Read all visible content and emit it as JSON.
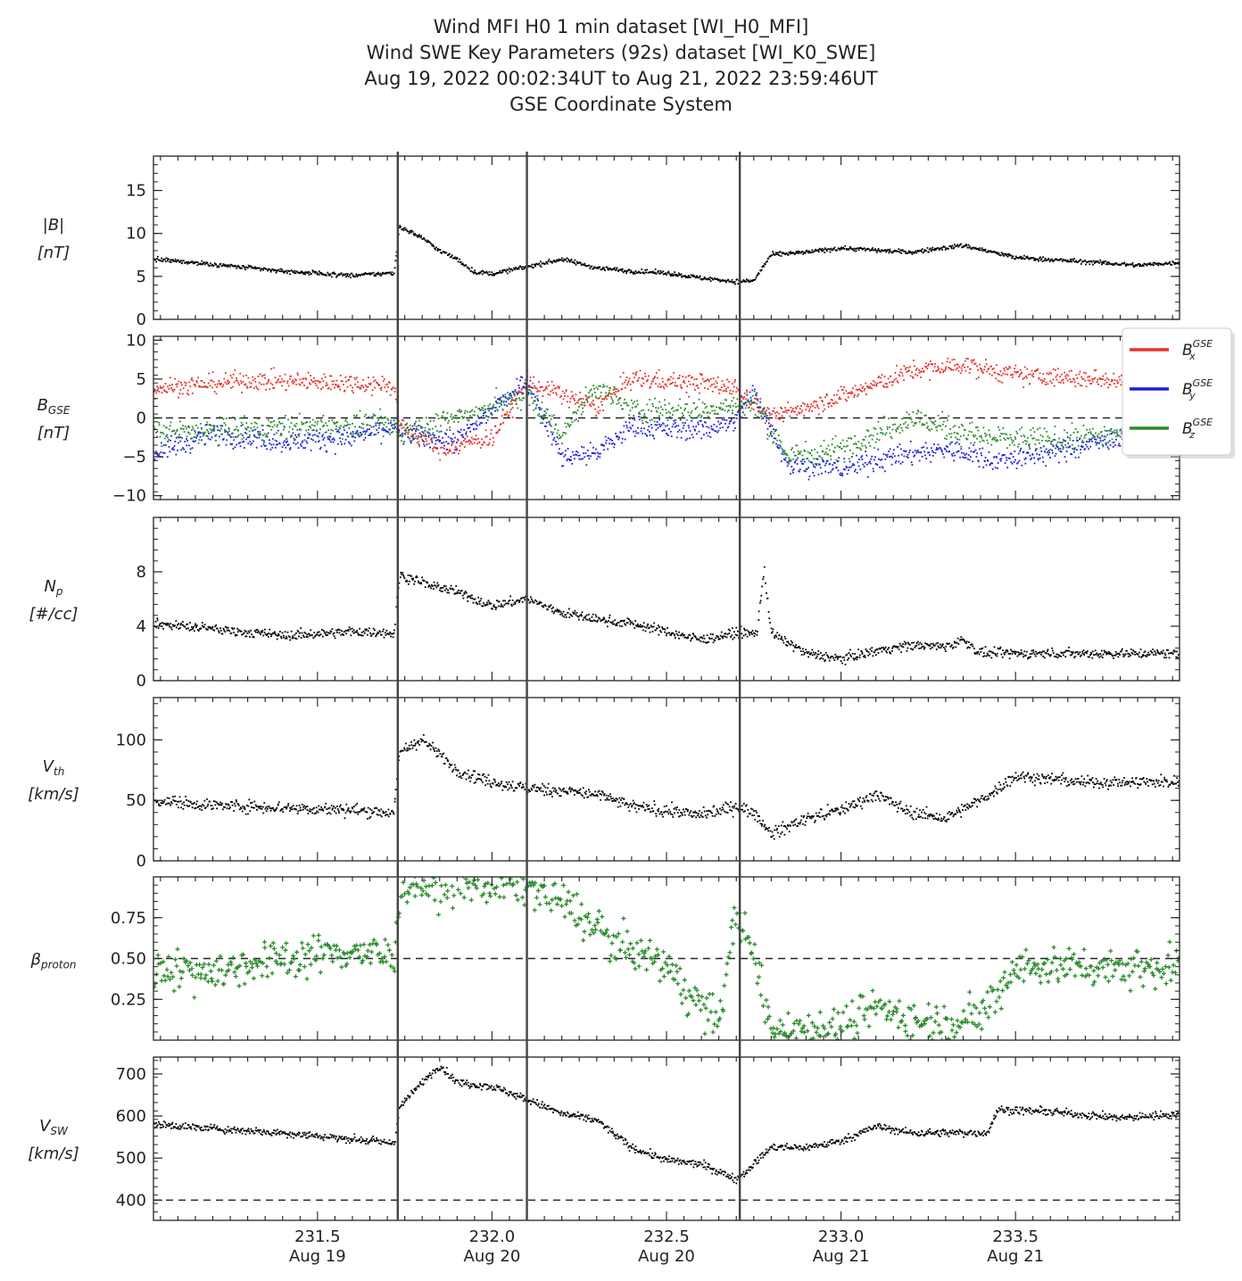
{
  "title_lines": [
    "Wind MFI H0 1 min dataset [WI_H0_MFI]",
    "Wind SWE Key Parameters (92s) dataset [WI_K0_SWE]",
    "Aug 19, 2022 00:02:34UT to Aug 21, 2022 23:59:46UT",
    "GSE Coordinate System"
  ],
  "chart_data": {
    "type": "scatter",
    "x_range": [
      231.03,
      233.97
    ],
    "x_ticks": [
      {
        "value": 231.5,
        "label": "231.5",
        "date": "Aug 19"
      },
      {
        "value": 232.0,
        "label": "232.0",
        "date": "Aug 20"
      },
      {
        "value": 232.5,
        "label": "232.5",
        "date": "Aug 20"
      },
      {
        "value": 233.0,
        "label": "233.0",
        "date": "Aug 21"
      },
      {
        "value": 233.5,
        "label": "233.5",
        "date": "Aug 21"
      }
    ],
    "event_lines": [
      231.73,
      232.1,
      232.71
    ],
    "panels": [
      {
        "id": "B",
        "ylabel_lines": [
          {
            "main": "|B|",
            "sub": "",
            "sup": ""
          },
          {
            "main": "[nT]",
            "sub": "",
            "sup": ""
          }
        ],
        "ylim": [
          0,
          19
        ],
        "yticks": [
          0,
          5,
          10,
          15
        ],
        "ytick_labels": [
          "0",
          "5",
          "10",
          "15"
        ],
        "hline": null,
        "series": [
          {
            "name": "|B|",
            "color": "#000000",
            "marker": "dot",
            "noise": 0.25,
            "x": [
              231.03,
              231.2,
              231.4,
              231.6,
              231.72,
              231.735,
              231.8,
              231.85,
              231.9,
              231.95,
              232.0,
              232.1,
              232.2,
              232.3,
              232.4,
              232.5,
              232.6,
              232.7,
              232.75,
              232.8,
              232.9,
              233.0,
              233.2,
              233.35,
              233.5,
              233.7,
              233.85,
              233.97
            ],
            "y": [
              7.0,
              6.4,
              5.6,
              5.1,
              5.4,
              10.8,
              9.5,
              8.0,
              7.0,
              5.5,
              5.3,
              6.1,
              7.0,
              6.0,
              5.6,
              5.4,
              4.8,
              4.4,
              4.5,
              7.5,
              7.8,
              8.3,
              7.8,
              8.6,
              7.2,
              6.7,
              6.3,
              6.6
            ]
          }
        ]
      },
      {
        "id": "BGSE",
        "ylabel_lines": [
          {
            "main": "B",
            "sub": "GSE",
            "sup": ""
          },
          {
            "main": "[nT]",
            "sub": "",
            "sup": ""
          }
        ],
        "ylim": [
          -10.5,
          10.5
        ],
        "yticks": [
          -10,
          -5,
          0,
          5,
          10
        ],
        "ytick_labels": [
          "−10",
          "−5",
          "0",
          "5",
          "10"
        ],
        "hline": 0,
        "series": [
          {
            "name": "Bx",
            "label_sup": "GSE",
            "label_sub": "x",
            "color": "#e8302a",
            "marker": "dot",
            "noise": 1.2,
            "x": [
              231.03,
              231.3,
              231.6,
              231.72,
              231.735,
              231.85,
              232.0,
              232.1,
              232.2,
              232.3,
              232.4,
              232.6,
              232.7,
              232.8,
              232.9,
              233.05,
              233.2,
              233.35,
              233.5,
              233.7,
              233.97
            ],
            "y": [
              3.8,
              4.8,
              4.5,
              4.2,
              -1.0,
              -4.0,
              -2.5,
              4.5,
              3.0,
              1.5,
              5.0,
              4.5,
              3.8,
              0.0,
              1.5,
              3.5,
              6.0,
              6.8,
              5.5,
              5.0,
              5.0
            ]
          },
          {
            "name": "By",
            "label_sup": "GSE",
            "label_sub": "y",
            "color": "#1f1fe0",
            "marker": "dot",
            "noise": 1.4,
            "x": [
              231.03,
              231.2,
              231.4,
              231.6,
              231.72,
              231.735,
              231.9,
              232.1,
              232.2,
              232.3,
              232.4,
              232.6,
              232.7,
              232.75,
              232.85,
              233.0,
              233.15,
              233.3,
              233.45,
              233.6,
              233.8,
              233.97
            ],
            "y": [
              -4.5,
              -2.0,
              -3.0,
              -2.5,
              -1.0,
              -2.0,
              -3.0,
              5.0,
              -5.0,
              -4.5,
              -1.2,
              -1.5,
              -0.5,
              3.5,
              -6.0,
              -6.5,
              -5.0,
              -4.0,
              -5.5,
              -4.5,
              -2.5,
              -0.5
            ]
          },
          {
            "name": "Bz",
            "label_sup": "GSE",
            "label_sub": "z",
            "color": "#2a8a2a",
            "marker": "dot",
            "noise": 1.6,
            "x": [
              231.03,
              231.3,
              231.6,
              231.72,
              231.735,
              231.9,
              232.1,
              232.2,
              232.3,
              232.4,
              232.6,
              232.7,
              232.75,
              232.85,
              233.0,
              233.2,
              233.4,
              233.6,
              233.8,
              233.97
            ],
            "y": [
              -2.0,
              -1.5,
              -1.0,
              -1.0,
              -2.0,
              0.0,
              3.0,
              -2.0,
              4.0,
              1.0,
              1.0,
              1.5,
              2.0,
              -5.0,
              -4.0,
              0.0,
              -2.5,
              -3.0,
              -2.0,
              -3.0
            ]
          }
        ]
      },
      {
        "id": "Np",
        "ylabel_lines": [
          {
            "main": "N",
            "sub": "p",
            "sup": ""
          },
          {
            "main": "[#/cc]",
            "sub": "",
            "sup": ""
          }
        ],
        "ylim": [
          0,
          12
        ],
        "yticks": [
          0,
          4,
          8
        ],
        "ytick_labels": [
          "0",
          "4",
          "8"
        ],
        "hline": null,
        "series": [
          {
            "name": "Np",
            "color": "#000000",
            "marker": "dot",
            "noise": 0.35,
            "x": [
              231.03,
              231.2,
              231.4,
              231.6,
              231.72,
              231.735,
              231.8,
              231.9,
              232.0,
              232.1,
              232.2,
              232.3,
              232.4,
              232.5,
              232.6,
              232.7,
              232.76,
              232.78,
              232.8,
              232.9,
              233.0,
              233.1,
              233.2,
              233.3,
              233.35,
              233.4,
              233.6,
              233.8,
              233.97
            ],
            "y": [
              4.2,
              3.8,
              3.3,
              3.6,
              3.5,
              7.8,
              7.2,
              6.5,
              5.5,
              6.0,
              5.0,
              4.5,
              4.2,
              3.6,
              3.0,
              3.5,
              3.5,
              8.3,
              3.5,
              2.0,
              1.6,
              2.2,
              2.6,
              2.5,
              3.0,
              2.0,
              2.0,
              2.0,
              2.0
            ]
          }
        ]
      },
      {
        "id": "Vth",
        "ylabel_lines": [
          {
            "main": "V",
            "sub": "th",
            "sup": ""
          },
          {
            "main": "[km/s]",
            "sub": "",
            "sup": ""
          }
        ],
        "ylim": [
          0,
          135
        ],
        "yticks": [
          0,
          50,
          100
        ],
        "ytick_labels": [
          "0",
          "50",
          "100"
        ],
        "hline": null,
        "series": [
          {
            "name": "Vth",
            "color": "#000000",
            "marker": "dot",
            "noise": 5,
            "x": [
              231.03,
              231.2,
              231.4,
              231.6,
              231.72,
              231.735,
              231.8,
              231.9,
              232.0,
              232.1,
              232.2,
              232.3,
              232.4,
              232.6,
              232.7,
              232.75,
              232.8,
              232.9,
              233.0,
              233.1,
              233.2,
              233.3,
              233.4,
              233.5,
              233.7,
              233.97
            ],
            "y": [
              50,
              46,
              44,
              42,
              40,
              90,
              100,
              75,
              65,
              60,
              58,
              55,
              45,
              38,
              45,
              40,
              22,
              35,
              42,
              55,
              40,
              35,
              50,
              70,
              65,
              65
            ]
          }
        ]
      },
      {
        "id": "beta",
        "ylabel_lines": [
          {
            "main": "β",
            "sub": "proton",
            "sup": ""
          }
        ],
        "ylim": [
          0,
          1.0
        ],
        "yticks": [
          0.25,
          0.5,
          0.75
        ],
        "ytick_labels": [
          "0.25",
          "0.50",
          "0.75"
        ],
        "hline": 0.5,
        "series": [
          {
            "name": "beta",
            "color": "#2a8a2a",
            "marker": "plus",
            "noise": 0.12,
            "x": [
              231.03,
              231.2,
              231.4,
              231.6,
              231.72,
              231.735,
              231.9,
              232.1,
              232.2,
              232.35,
              232.5,
              232.6,
              232.65,
              232.7,
              232.75,
              232.8,
              232.9,
              233.0,
              233.1,
              233.2,
              233.3,
              233.4,
              233.5,
              233.7,
              233.97
            ],
            "y": [
              0.45,
              0.42,
              0.5,
              0.55,
              0.5,
              0.95,
              0.95,
              0.95,
              0.85,
              0.6,
              0.45,
              0.2,
              0.12,
              0.8,
              0.5,
              0.07,
              0.08,
              0.08,
              0.22,
              0.12,
              0.12,
              0.14,
              0.45,
              0.45,
              0.45
            ]
          }
        ]
      },
      {
        "id": "Vsw",
        "ylabel_lines": [
          {
            "main": "V",
            "sub": "SW",
            "sup": ""
          },
          {
            "main": "[km/s]",
            "sub": "",
            "sup": ""
          }
        ],
        "ylim": [
          352,
          740
        ],
        "yticks": [
          400,
          500,
          600,
          700
        ],
        "ytick_labels": [
          "400",
          "500",
          "600",
          "700"
        ],
        "hline": 400,
        "series": [
          {
            "name": "Vsw",
            "color": "#000000",
            "marker": "dot",
            "noise": 9,
            "x": [
              231.03,
              231.2,
              231.4,
              231.6,
              231.72,
              231.735,
              231.8,
              231.85,
              231.9,
              232.0,
              232.1,
              232.2,
              232.3,
              232.4,
              232.5,
              232.6,
              232.7,
              232.73,
              232.8,
              232.9,
              233.0,
              233.1,
              233.2,
              233.3,
              233.42,
              233.45,
              233.6,
              233.8,
              233.97
            ],
            "y": [
              580,
              570,
              560,
              545,
              535,
              620,
              680,
              720,
              680,
              670,
              640,
              605,
              590,
              525,
              495,
              485,
              450,
              470,
              525,
              525,
              540,
              575,
              560,
              560,
              560,
              615,
              610,
              595,
              605
            ]
          }
        ]
      }
    ]
  }
}
